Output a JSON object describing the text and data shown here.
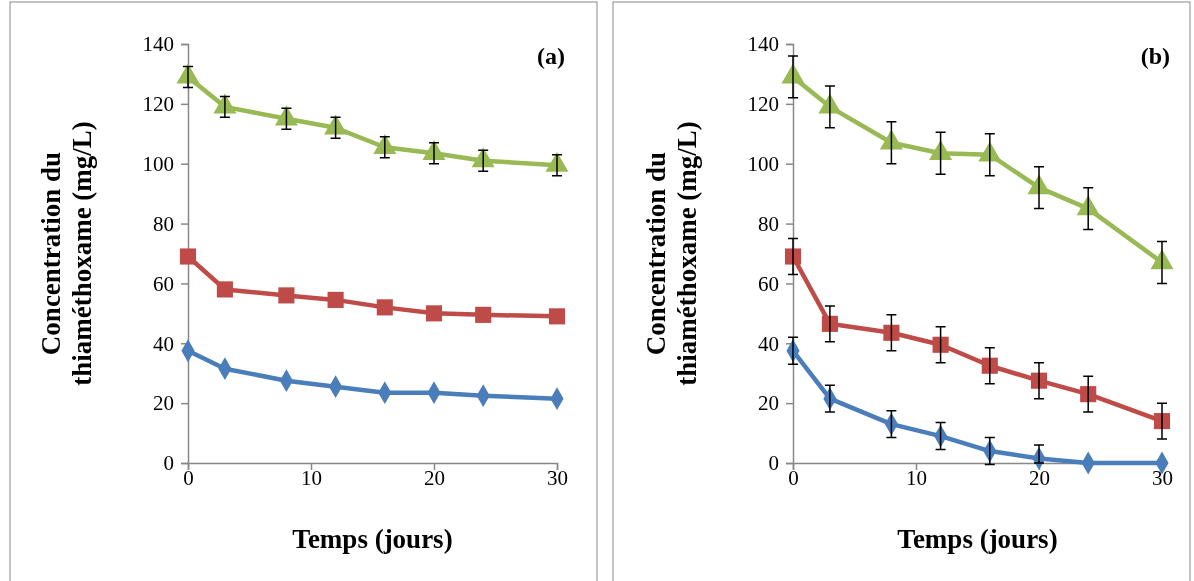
{
  "chart_data": [
    {
      "type": "line",
      "title": "(a)",
      "xlabel": "Temps (jours)",
      "ylabel": "Concentration du thiaméthoxame (mg/L)",
      "x": [
        0,
        3,
        8,
        12,
        16,
        20,
        24,
        30
      ],
      "xlim": [
        0,
        30
      ],
      "xticks": [
        0,
        10,
        20,
        30
      ],
      "ylim": [
        0,
        140
      ],
      "yticks": [
        0,
        20,
        40,
        60,
        80,
        100,
        120,
        140
      ],
      "grid": false,
      "series": [
        {
          "color": "#4a7ebb",
          "marker": "diamond",
          "values": [
            37.5,
            31.5,
            27.5,
            25.5,
            23.5,
            23.5,
            22.5,
            21.5
          ]
        },
        {
          "color": "#be4b48",
          "marker": "square",
          "values": [
            69,
            58,
            56,
            54.5,
            52,
            50,
            49.5,
            49
          ]
        },
        {
          "color": "#98b954",
          "marker": "triangle",
          "values": [
            129,
            119,
            115,
            112,
            105.5,
            103.5,
            101,
            99.5
          ],
          "errors": [
            3.5,
            3.5,
            3.5,
            3.5,
            3.5,
            3.5,
            3.5,
            3.5
          ]
        }
      ]
    },
    {
      "type": "line",
      "title": "(b)",
      "xlabel": "Temps (jours)",
      "ylabel": "Concentration du thiaméthoxame (mg/L)",
      "x": [
        0,
        3,
        8,
        12,
        16,
        20,
        24,
        30
      ],
      "xlim": [
        0,
        30
      ],
      "xticks": [
        0,
        10,
        20,
        30
      ],
      "ylim": [
        0,
        140
      ],
      "yticks": [
        0,
        20,
        40,
        60,
        80,
        100,
        120,
        140
      ],
      "grid": false,
      "series": [
        {
          "color": "#4a7ebb",
          "marker": "diamond",
          "values": [
            37.5,
            21.5,
            13,
            9,
            4,
            1.5,
            0,
            0
          ],
          "errors": [
            4.5,
            4.5,
            4.5,
            4.5,
            4.5,
            [
              0,
              6
            ],
            null,
            null
          ]
        },
        {
          "color": "#be4b48",
          "marker": "square",
          "values": [
            69,
            46.5,
            43.5,
            39.5,
            32.5,
            27.5,
            23,
            14
          ],
          "errors": [
            6,
            6,
            6,
            6,
            6,
            6,
            6,
            6
          ]
        },
        {
          "color": "#98b954",
          "marker": "triangle",
          "values": [
            129,
            119,
            107,
            103.5,
            103,
            92,
            85,
            67
          ],
          "errors": [
            7,
            7,
            7,
            7,
            7,
            7,
            7,
            7
          ]
        }
      ]
    }
  ]
}
